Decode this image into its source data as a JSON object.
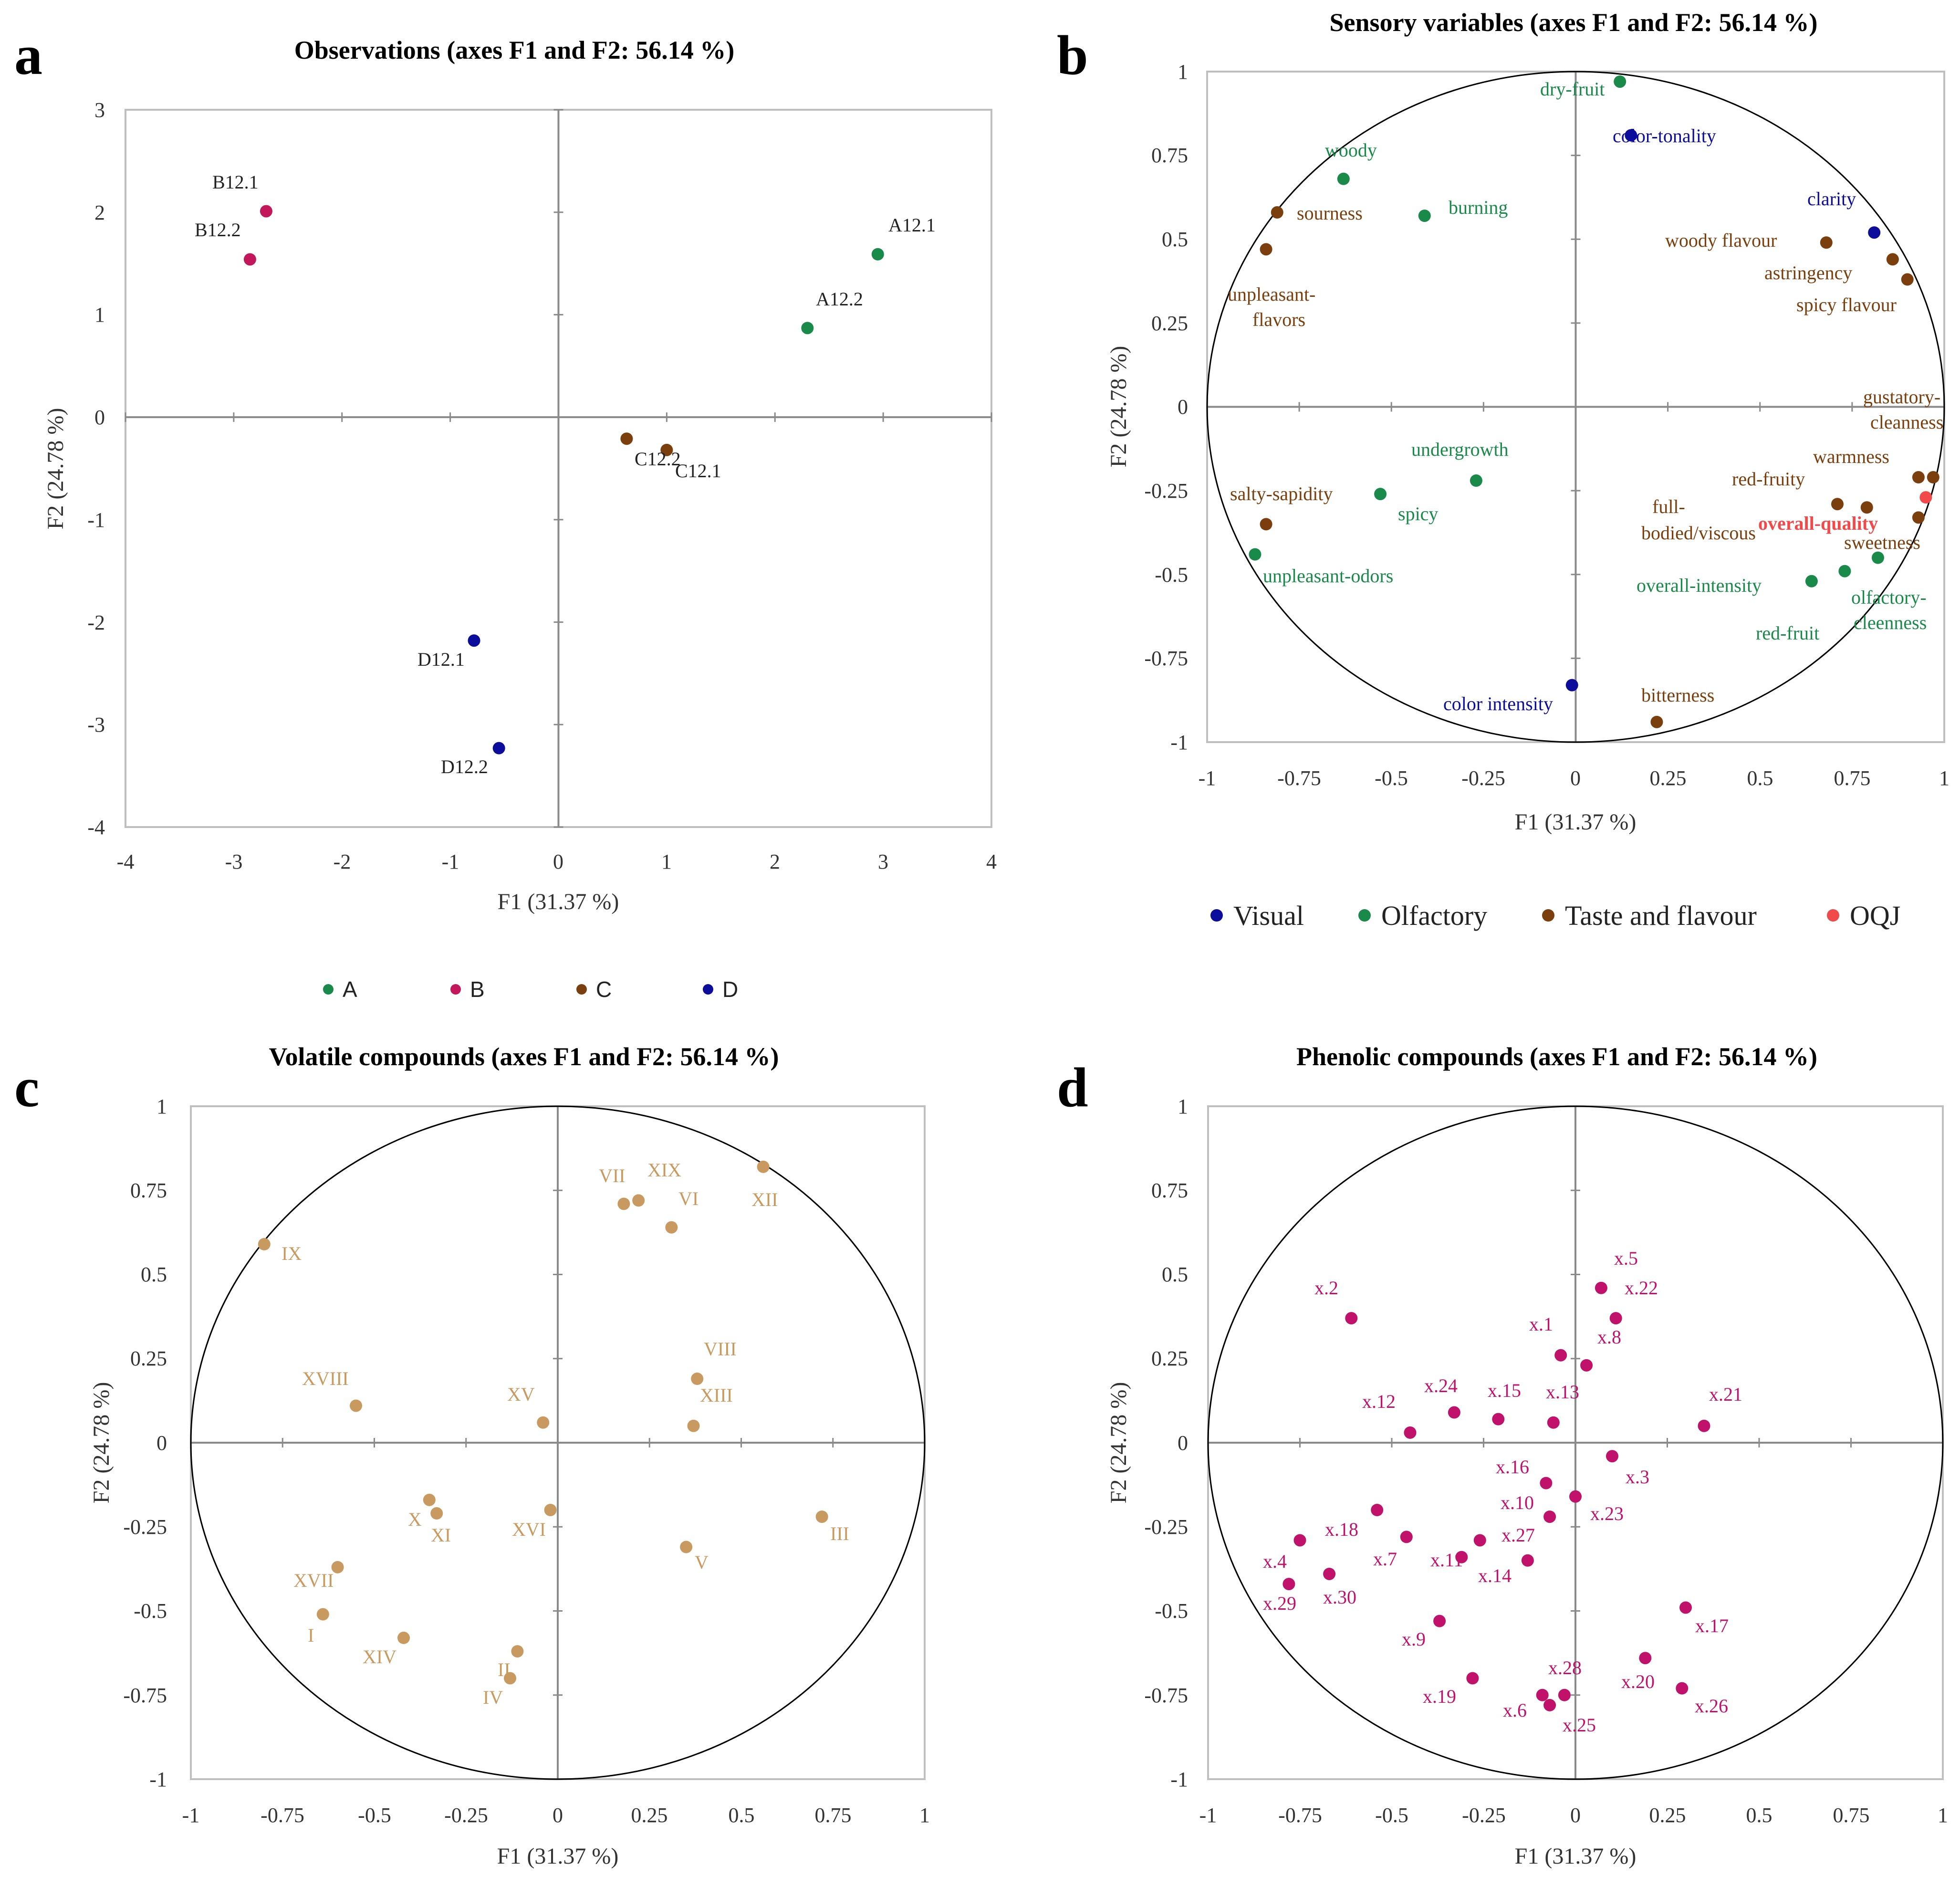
{
  "colors": {
    "A": "#1a8a4a",
    "B": "#c2185b",
    "C": "#7b3f0d",
    "D": "#0d0d9c",
    "Visual": "#0d0d9c",
    "Olfactory": "#1a8a4a",
    "Taste and flavour": "#7b3f0d",
    "OQJ": "#f04a4a",
    "volatile": "#c89a5f",
    "phenolic": "#c0126a"
  },
  "chart_data": [
    {
      "id": "a",
      "type": "scatter",
      "letter": "a",
      "title": "Observations (axes F1 and F2: 56.14 %)",
      "xlabel": "F1 (31.37 %)",
      "ylabel": "F2 (24.78 %)",
      "xlim": [
        -4,
        4
      ],
      "ylim": [
        -4,
        3
      ],
      "xticks": [
        "-4",
        "-3",
        "-2",
        "-1",
        "0",
        "1",
        "2",
        "3",
        "4"
      ],
      "yticks": [
        "-4",
        "-3",
        "-2",
        "-1",
        "0",
        "1",
        "2",
        "3"
      ],
      "legend": [
        "A",
        "B",
        "C",
        "D"
      ],
      "points": [
        {
          "label": "A12.1",
          "group": "A",
          "x": 2.95,
          "y": 1.59
        },
        {
          "label": "A12.2",
          "group": "A",
          "x": 2.3,
          "y": 0.87
        },
        {
          "label": "B12.1",
          "group": "B",
          "x": -2.7,
          "y": 2.01
        },
        {
          "label": "B12.2",
          "group": "B",
          "x": -2.85,
          "y": 1.54
        },
        {
          "label": "C12.2",
          "group": "C",
          "x": 0.63,
          "y": -0.21
        },
        {
          "label": "C12.1",
          "group": "C",
          "x": 1.0,
          "y": -0.32
        },
        {
          "label": "D12.1",
          "group": "D",
          "x": -0.78,
          "y": -2.18
        },
        {
          "label": "D12.2",
          "group": "D",
          "x": -0.55,
          "y": -3.23
        }
      ]
    },
    {
      "id": "b",
      "type": "scatter",
      "letter": "b",
      "title": "Sensory variables (axes F1 and F2: 56.14 %)",
      "xlabel": "F1 (31.37 %)",
      "ylabel": "F2 (24.78 %)",
      "xlim": [
        -1,
        1
      ],
      "ylim": [
        -1,
        1
      ],
      "xticks": [
        "-1",
        "-0.75",
        "-0.5",
        "-0.25",
        "0",
        "0.25",
        "0.5",
        "0.75",
        "1"
      ],
      "yticks": [
        "-1",
        "-0.75",
        "-0.5",
        "-0.25",
        "0",
        "0.25",
        "0.5",
        "0.75",
        "1"
      ],
      "legend": [
        "Visual",
        "Olfactory",
        "Taste and flavour",
        "OQJ"
      ],
      "points": [
        {
          "label": "dry-fruit",
          "group": "Olfactory",
          "x": 0.12,
          "y": 0.97
        },
        {
          "label": "color-tonality",
          "group": "Visual",
          "x": 0.15,
          "y": 0.81
        },
        {
          "label": "woody",
          "group": "Olfactory",
          "x": -0.63,
          "y": 0.68
        },
        {
          "label": "sourness",
          "group": "Taste and flavour",
          "x": -0.81,
          "y": 0.58
        },
        {
          "label": "burning",
          "group": "Olfactory",
          "x": -0.41,
          "y": 0.57
        },
        {
          "label": "unpleasant-flavors",
          "group": "Taste and flavour",
          "x": -0.84,
          "y": 0.47
        },
        {
          "label": "clarity",
          "group": "Visual",
          "x": 0.81,
          "y": 0.52
        },
        {
          "label": "woody flavour",
          "group": "Taste and flavour",
          "x": 0.68,
          "y": 0.49
        },
        {
          "label": "astringency",
          "group": "Taste and flavour",
          "x": 0.86,
          "y": 0.44
        },
        {
          "label": "spicy flavour",
          "group": "Taste and flavour",
          "x": 0.9,
          "y": 0.38
        },
        {
          "label": "gustatory-cleanness",
          "group": "Taste and flavour",
          "x": 0.97,
          "y": -0.21
        },
        {
          "label": "warmness",
          "group": "Taste and flavour",
          "x": 0.93,
          "y": -0.21
        },
        {
          "label": "red-fruity",
          "group": "Taste and flavour",
          "x": 0.71,
          "y": -0.29
        },
        {
          "label": "full-bodied/viscous",
          "group": "Taste and flavour",
          "x": 0.79,
          "y": -0.3
        },
        {
          "label": "overall-quality",
          "group": "OQJ",
          "x": 0.95,
          "y": -0.27
        },
        {
          "label": "sweetness",
          "group": "Taste and flavour",
          "x": 0.93,
          "y": -0.33
        },
        {
          "label": "undergrowth",
          "group": "Olfactory",
          "x": -0.27,
          "y": -0.22
        },
        {
          "label": "spicy",
          "group": "Olfactory",
          "x": -0.53,
          "y": -0.26
        },
        {
          "label": "salty-sapidity",
          "group": "Taste and flavour",
          "x": -0.84,
          "y": -0.35
        },
        {
          "label": "unpleasant-odors",
          "group": "Olfactory",
          "x": -0.87,
          "y": -0.44
        },
        {
          "label": "overall-intensity",
          "group": "Olfactory",
          "x": 0.64,
          "y": -0.52
        },
        {
          "label": "olfactory-cleenness",
          "group": "Olfactory",
          "x": 0.73,
          "y": -0.49
        },
        {
          "label": "red-fruit",
          "group": "Olfactory",
          "x": 0.82,
          "y": -0.45
        },
        {
          "label": "color intensity",
          "group": "Visual",
          "x": -0.01,
          "y": -0.83
        },
        {
          "label": "bitterness",
          "group": "Taste and flavour",
          "x": 0.22,
          "y": -0.94
        }
      ]
    },
    {
      "id": "c",
      "type": "scatter",
      "letter": "c",
      "title": "Volatile compounds (axes F1 and F2: 56.14 %)",
      "xlabel": "F1 (31.37 %)",
      "ylabel": "F2 (24.78 %)",
      "xlim": [
        -1,
        1
      ],
      "ylim": [
        -1,
        1
      ],
      "xticks": [
        "-1",
        "-0.75",
        "-0.5",
        "-0.25",
        "0",
        "0.25",
        "0.5",
        "0.75",
        "1"
      ],
      "yticks": [
        "-1",
        "-0.75",
        "-0.5",
        "-0.25",
        "0",
        "0.25",
        "0.5",
        "0.75",
        "1"
      ],
      "points": [
        {
          "label": "XII",
          "x": 0.56,
          "y": 0.82
        },
        {
          "label": "VII",
          "x": 0.18,
          "y": 0.71
        },
        {
          "label": "XIX",
          "x": 0.22,
          "y": 0.72
        },
        {
          "label": "VI",
          "x": 0.31,
          "y": 0.64
        },
        {
          "label": "IX",
          "x": -0.8,
          "y": 0.59
        },
        {
          "label": "VIII",
          "x": 0.38,
          "y": 0.19
        },
        {
          "label": "XIII",
          "x": 0.37,
          "y": 0.05
        },
        {
          "label": "XVIII",
          "x": -0.55,
          "y": 0.11
        },
        {
          "label": "XV",
          "x": -0.04,
          "y": 0.06
        },
        {
          "label": "X",
          "x": -0.35,
          "y": -0.17
        },
        {
          "label": "XI",
          "x": -0.33,
          "y": -0.21
        },
        {
          "label": "XVI",
          "x": -0.02,
          "y": -0.2
        },
        {
          "label": "III",
          "x": 0.72,
          "y": -0.22
        },
        {
          "label": "V",
          "x": 0.35,
          "y": -0.31
        },
        {
          "label": "XVII",
          "x": -0.6,
          "y": -0.37
        },
        {
          "label": "I",
          "x": -0.64,
          "y": -0.51
        },
        {
          "label": "XIV",
          "x": -0.42,
          "y": -0.58
        },
        {
          "label": "II",
          "x": -0.11,
          "y": -0.62
        },
        {
          "label": "IV",
          "x": -0.13,
          "y": -0.7
        }
      ]
    },
    {
      "id": "d",
      "type": "scatter",
      "letter": "d",
      "title": "Phenolic compounds (axes F1 and F2: 56.14 %)",
      "xlabel": "F1 (31.37 %)",
      "ylabel": "F2 (24.78 %)",
      "xlim": [
        -1,
        1
      ],
      "ylim": [
        -1,
        1
      ],
      "xticks": [
        "-1",
        "-0.75",
        "-0.5",
        "-0.25",
        "0",
        "0.25",
        "0.5",
        "0.75",
        "1"
      ],
      "yticks": [
        "-1",
        "-0.75",
        "-0.5",
        "-0.25",
        "0",
        "0.25",
        "0.5",
        "0.75",
        "1"
      ],
      "points": [
        {
          "label": "x.5",
          "x": 0.07,
          "y": 0.46
        },
        {
          "label": "x.22",
          "x": 0.11,
          "y": 0.37
        },
        {
          "label": "x.2",
          "x": -0.61,
          "y": 0.37
        },
        {
          "label": "x.1",
          "x": -0.04,
          "y": 0.26
        },
        {
          "label": "x.8",
          "x": 0.03,
          "y": 0.23
        },
        {
          "label": "x.21",
          "x": 0.35,
          "y": 0.05
        },
        {
          "label": "x.12",
          "x": -0.45,
          "y": 0.03
        },
        {
          "label": "x.24",
          "x": -0.33,
          "y": 0.09
        },
        {
          "label": "x.15",
          "x": -0.21,
          "y": 0.07
        },
        {
          "label": "x.13",
          "x": -0.06,
          "y": 0.06
        },
        {
          "label": "x.3",
          "x": 0.1,
          "y": -0.04
        },
        {
          "label": "x.16",
          "x": -0.08,
          "y": -0.12
        },
        {
          "label": "x.23",
          "x": 0.0,
          "y": -0.16
        },
        {
          "label": "x.10",
          "x": -0.07,
          "y": -0.22
        },
        {
          "label": "x.18",
          "x": -0.54,
          "y": -0.2
        },
        {
          "label": "x.27",
          "x": -0.26,
          "y": -0.29
        },
        {
          "label": "x.7",
          "x": -0.46,
          "y": -0.28
        },
        {
          "label": "x.11",
          "x": -0.31,
          "y": -0.34
        },
        {
          "label": "x.14",
          "x": -0.13,
          "y": -0.35
        },
        {
          "label": "x.4",
          "x": -0.75,
          "y": -0.29
        },
        {
          "label": "x.30",
          "x": -0.67,
          "y": -0.39
        },
        {
          "label": "x.29",
          "x": -0.78,
          "y": -0.42
        },
        {
          "label": "x.17",
          "x": 0.3,
          "y": -0.49
        },
        {
          "label": "x.9",
          "x": -0.37,
          "y": -0.53
        },
        {
          "label": "x.20",
          "x": 0.19,
          "y": -0.64
        },
        {
          "label": "x.26",
          "x": 0.29,
          "y": -0.73
        },
        {
          "label": "x.19",
          "x": -0.28,
          "y": -0.7
        },
        {
          "label": "x.28",
          "x": -0.03,
          "y": -0.75
        },
        {
          "label": "x.6",
          "x": -0.09,
          "y": -0.75
        },
        {
          "label": "x.25",
          "x": -0.07,
          "y": -0.78
        }
      ]
    }
  ]
}
